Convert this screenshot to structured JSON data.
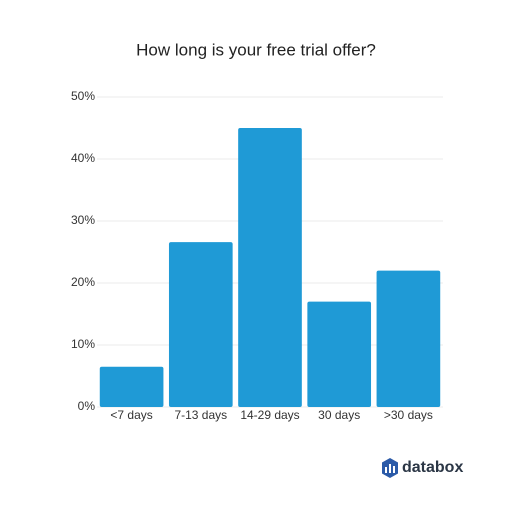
{
  "chart_data": {
    "type": "bar",
    "title": "How long is your free trial offer?",
    "categories": [
      "<7 days",
      "7-13 days",
      "14-29 days",
      "30 days",
      ">30 days"
    ],
    "values": [
      6.5,
      26.6,
      45,
      17,
      22
    ],
    "color": "#1f9ad6",
    "ylim": [
      0,
      50
    ],
    "yticks": [
      {
        "value": 0,
        "label": "0%"
      },
      {
        "value": 10,
        "label": "10%"
      },
      {
        "value": 20,
        "label": "20%"
      },
      {
        "value": 30,
        "label": "30%"
      },
      {
        "value": 40,
        "label": "40%"
      },
      {
        "value": 50,
        "label": "50%"
      }
    ],
    "grid": true,
    "logo": "databox"
  }
}
